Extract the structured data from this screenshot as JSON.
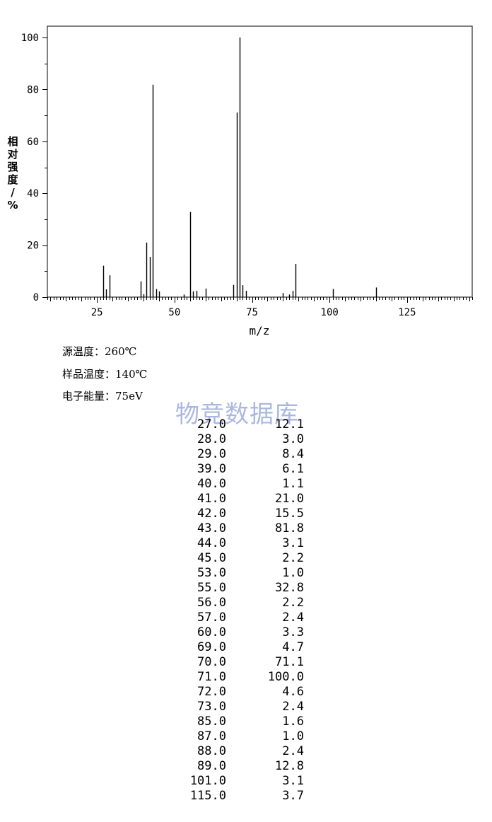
{
  "chart_data": {
    "type": "bar",
    "xlabel": "m/z",
    "ylabel": "相对强度/%",
    "xlim": [
      9,
      146
    ],
    "ylim": [
      0,
      100
    ],
    "x_ticks": [
      25,
      50,
      75,
      100,
      125
    ],
    "y_ticks": [
      0,
      20,
      40,
      60,
      80,
      100
    ],
    "grid": false,
    "x": [
      27,
      28,
      29,
      39,
      40,
      41,
      42,
      43,
      44,
      45,
      53,
      55,
      56,
      57,
      60,
      69,
      70,
      71,
      72,
      73,
      85,
      87,
      88,
      89,
      101,
      115
    ],
    "values": [
      12.1,
      3.0,
      8.4,
      6.1,
      1.1,
      21.0,
      15.5,
      81.8,
      3.1,
      2.2,
      1.0,
      32.8,
      2.2,
      2.4,
      3.3,
      4.7,
      71.1,
      100.0,
      4.6,
      2.4,
      1.6,
      1.0,
      2.4,
      12.8,
      3.1,
      3.7
    ]
  },
  "conditions": [
    {
      "label": "源温度：",
      "value": "260℃"
    },
    {
      "label": "样品温度：",
      "value": "140℃"
    },
    {
      "label": "电子能量：",
      "value": "75eV"
    }
  ],
  "watermark": "物竞数据库",
  "peak_table": [
    {
      "mz": "27.0",
      "intensity": "12.1"
    },
    {
      "mz": "28.0",
      "intensity": "3.0"
    },
    {
      "mz": "29.0",
      "intensity": "8.4"
    },
    {
      "mz": "39.0",
      "intensity": "6.1"
    },
    {
      "mz": "40.0",
      "intensity": "1.1"
    },
    {
      "mz": "41.0",
      "intensity": "21.0"
    },
    {
      "mz": "42.0",
      "intensity": "15.5"
    },
    {
      "mz": "43.0",
      "intensity": "81.8"
    },
    {
      "mz": "44.0",
      "intensity": "3.1"
    },
    {
      "mz": "45.0",
      "intensity": "2.2"
    },
    {
      "mz": "53.0",
      "intensity": "1.0"
    },
    {
      "mz": "55.0",
      "intensity": "32.8"
    },
    {
      "mz": "56.0",
      "intensity": "2.2"
    },
    {
      "mz": "57.0",
      "intensity": "2.4"
    },
    {
      "mz": "60.0",
      "intensity": "3.3"
    },
    {
      "mz": "69.0",
      "intensity": "4.7"
    },
    {
      "mz": "70.0",
      "intensity": "71.1"
    },
    {
      "mz": "71.0",
      "intensity": "100.0"
    },
    {
      "mz": "72.0",
      "intensity": "4.6"
    },
    {
      "mz": "73.0",
      "intensity": "2.4"
    },
    {
      "mz": "85.0",
      "intensity": "1.6"
    },
    {
      "mz": "87.0",
      "intensity": "1.0"
    },
    {
      "mz": "88.0",
      "intensity": "2.4"
    },
    {
      "mz": "89.0",
      "intensity": "12.8"
    },
    {
      "mz": "101.0",
      "intensity": "3.1"
    },
    {
      "mz": "115.0",
      "intensity": "3.7"
    }
  ]
}
